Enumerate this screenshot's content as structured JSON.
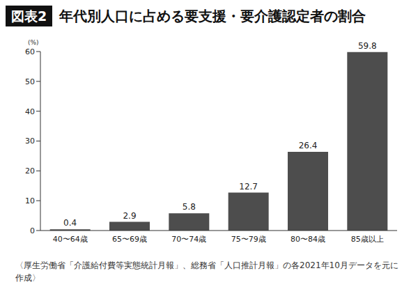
{
  "chart_data": {
    "type": "bar",
    "figure_label": "図表2",
    "title": "年代別人口に占める要支援・要介護認定者の割合",
    "y_label": "(%)",
    "categories": [
      "40〜64歳",
      "65〜69歳",
      "70〜74歳",
      "75〜79歳",
      "80〜84歳",
      "85歳以上"
    ],
    "values": [
      0.4,
      2.9,
      5.8,
      12.7,
      26.4,
      59.8
    ],
    "color": "#4d4d4d",
    "ylim": [
      0,
      60
    ],
    "yticks": [
      0,
      10,
      20,
      30,
      40,
      50,
      60
    ],
    "grid": false,
    "data_labels": true,
    "note": "〈厚生労働省「介護給付費等実態統計月報」、総務省「人口推計月報」の各2021年10月データを元に作成〉"
  }
}
